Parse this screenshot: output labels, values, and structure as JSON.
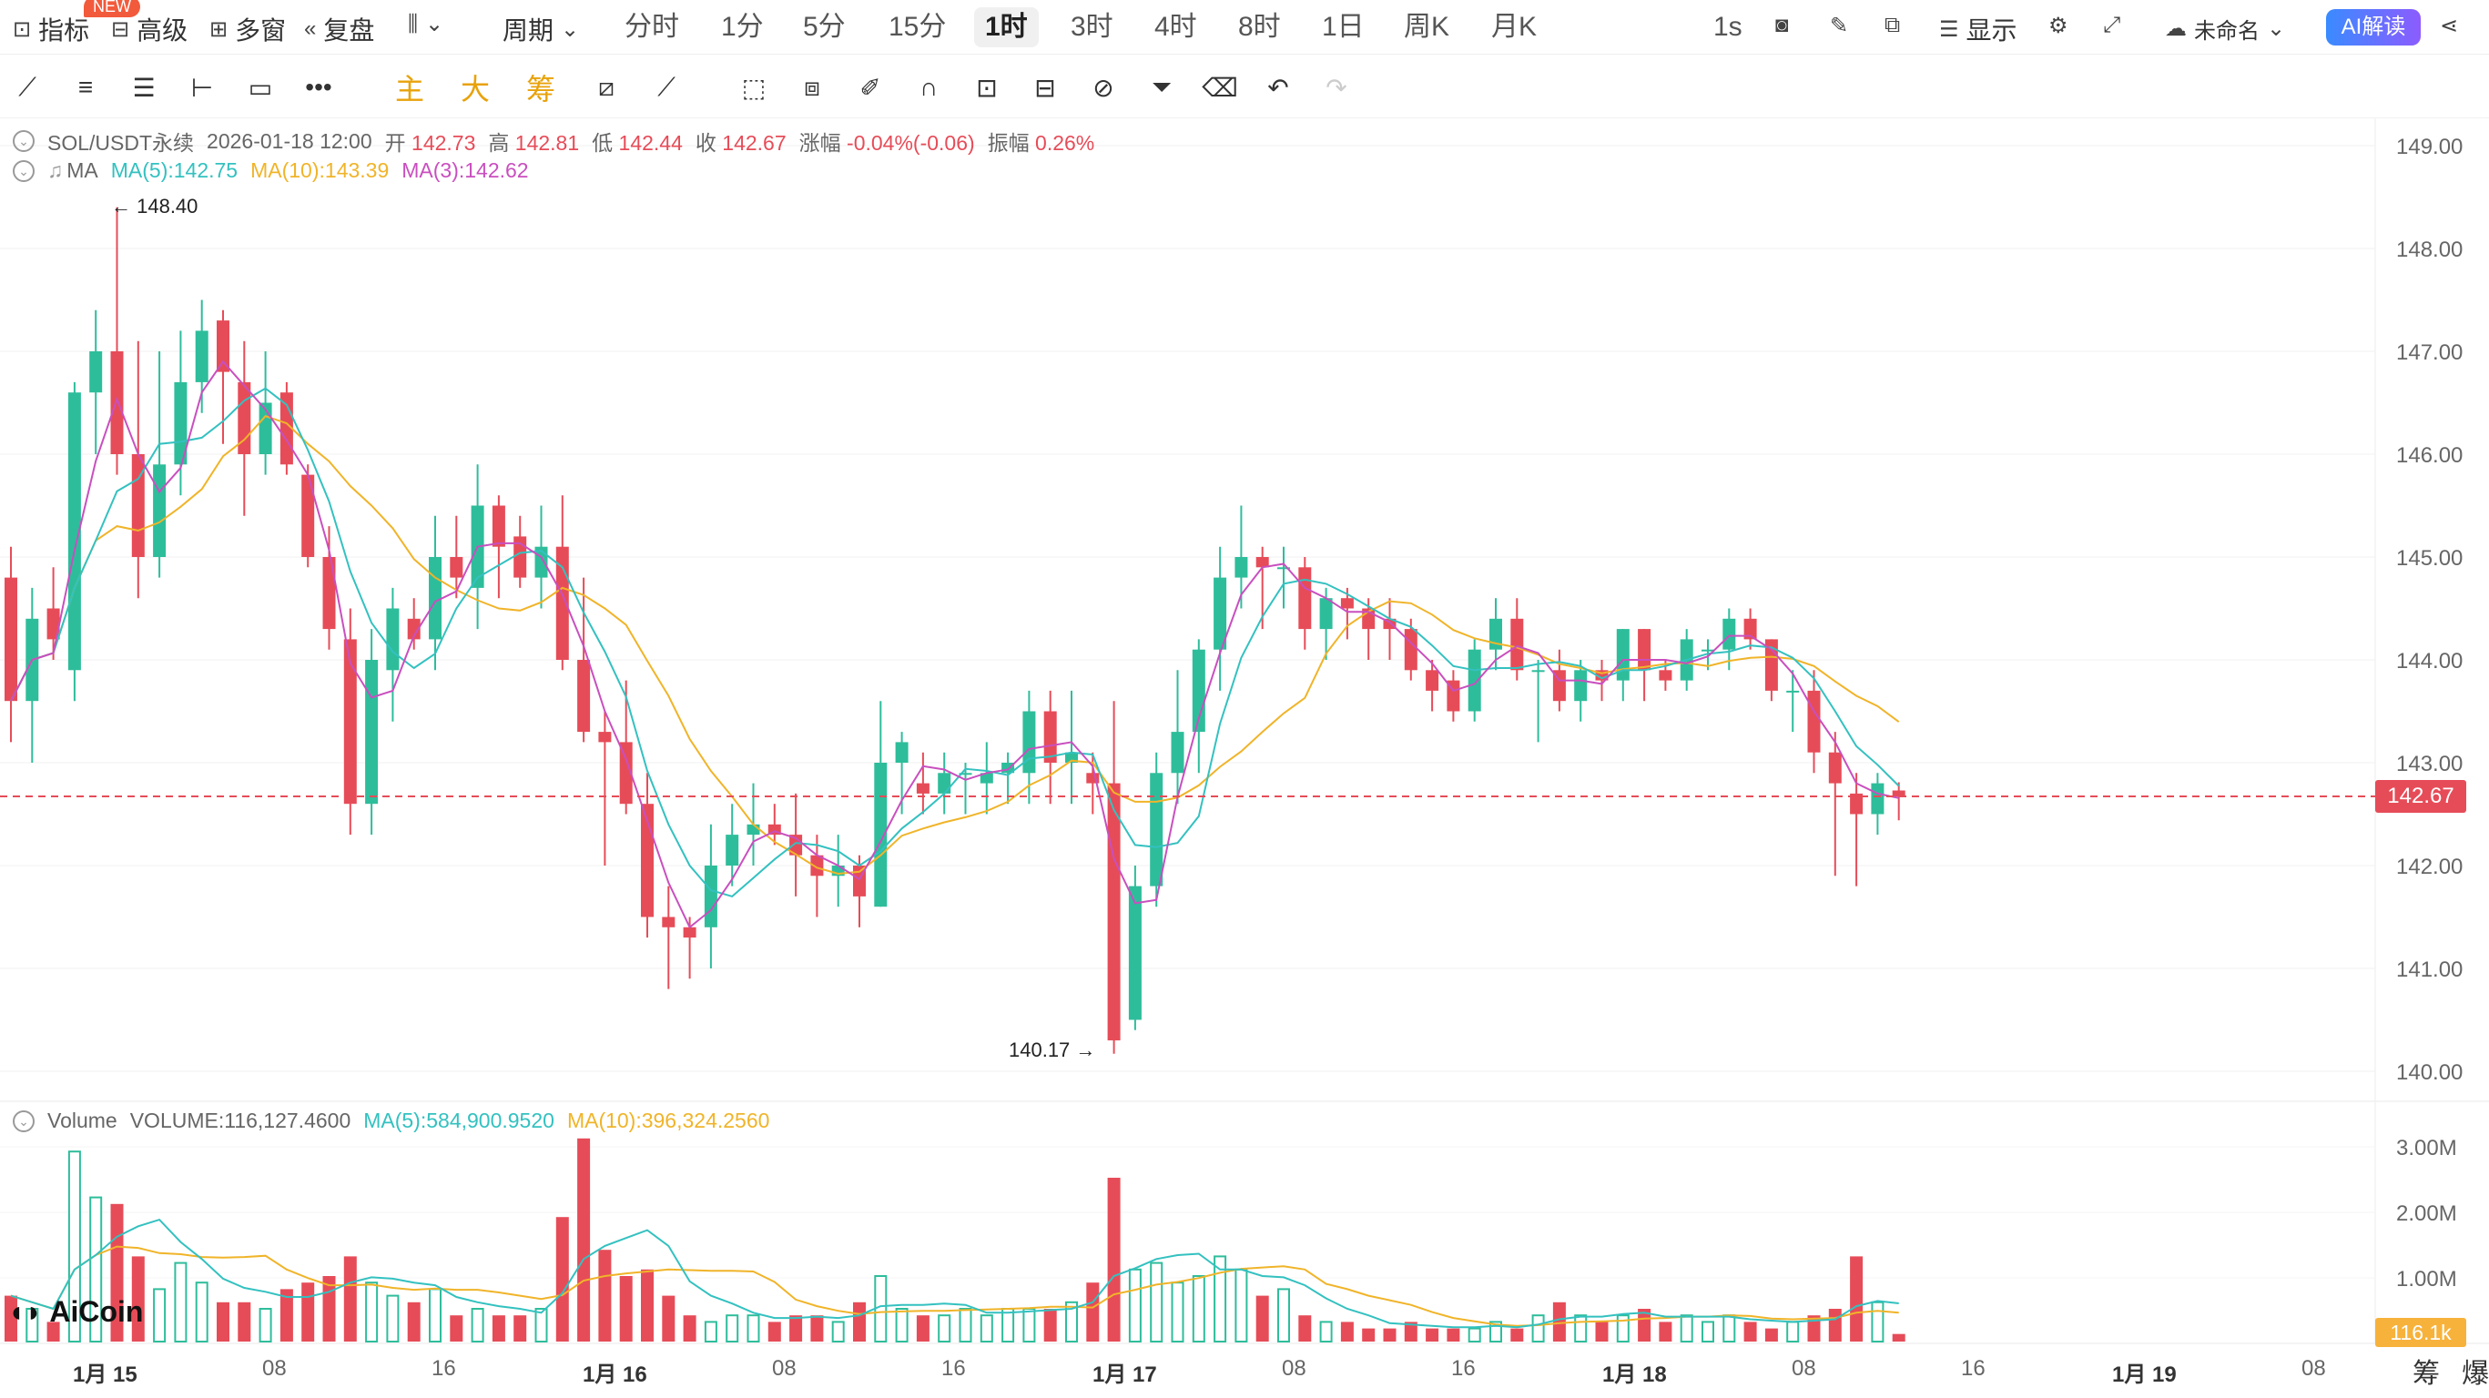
{
  "topbar": {
    "indicator_label": "指标",
    "new_badge": "NEW",
    "advanced_label": "高级",
    "multi_window_label": "多窗",
    "replay_label": "复盘",
    "period_label": "周期",
    "periods": [
      "分时",
      "1分",
      "5分",
      "15分",
      "1时",
      "3时",
      "4时",
      "8时",
      "1日",
      "周K",
      "月K"
    ],
    "active_period": "1时",
    "refresh_label": "1s",
    "display_label": "显示",
    "layout_name": "未命名",
    "ai_label": "AI解读"
  },
  "toolbar": {
    "main_label": "主",
    "big_label": "大",
    "chips_label": "筹"
  },
  "ohlc_legend": {
    "symbol": "SOL/USDT永续",
    "datetime": "2026-01-18 12:00",
    "open_label": "开",
    "open": "142.73",
    "high_label": "高",
    "high": "142.81",
    "low_label": "低",
    "low": "142.44",
    "close_label": "收",
    "close": "142.67",
    "change_label": "涨幅",
    "change": "-0.04%(-0.06)",
    "amplitude_label": "振幅",
    "amplitude": "0.26%"
  },
  "ma_legend": {
    "name": "MA",
    "ma5": "MA(5):142.75",
    "ma10": "MA(10):143.39",
    "ma3": "MA(3):142.62"
  },
  "volume_legend": {
    "name": "Volume",
    "volume": "VOLUME:116,127.4600",
    "ma5": "MA(5):584,900.9520",
    "ma10": "MA(10):396,324.2560"
  },
  "annotations": {
    "high_mark": "← 148.40",
    "low_mark": "140.17 →"
  },
  "price_axis": [
    "149.00",
    "148.00",
    "147.00",
    "146.00",
    "145.00",
    "144.00",
    "143.00",
    "142.00",
    "141.00",
    "140.00"
  ],
  "current_price": "142.67",
  "volume_axis": [
    "3.00M",
    "2.00M",
    "1.00M"
  ],
  "current_volume": "116.1k",
  "time_axis": [
    "1月 15",
    "08",
    "16",
    "1月 16",
    "08",
    "16",
    "1月 17",
    "08",
    "16",
    "1月 18",
    "08",
    "16",
    "1月 19",
    "08"
  ],
  "footer": {
    "chips": "筹",
    "liquidation": "爆"
  },
  "watermark": "AiCoin",
  "colors": {
    "up": "#2ebd9b",
    "down": "#e64c58",
    "ma5": "#33c1c0",
    "ma10": "#f0b429",
    "ma3": "#c94fbf"
  },
  "chart_data": {
    "type": "candlestick",
    "interval": "1h",
    "price_range": [
      140.0,
      149.0
    ],
    "volume_range_millions": [
      0,
      3.0
    ],
    "candles": [
      {
        "o": 144.8,
        "h": 145.1,
        "l": 143.2,
        "c": 143.6
      },
      {
        "o": 143.6,
        "h": 144.7,
        "l": 143.0,
        "c": 144.4
      },
      {
        "o": 144.5,
        "h": 144.9,
        "l": 144.0,
        "c": 144.2
      },
      {
        "o": 143.9,
        "h": 146.7,
        "l": 143.6,
        "c": 146.6
      },
      {
        "o": 146.6,
        "h": 147.4,
        "l": 146.0,
        "c": 147.0
      },
      {
        "o": 147.0,
        "h": 148.4,
        "l": 145.8,
        "c": 146.0
      },
      {
        "o": 146.0,
        "h": 147.1,
        "l": 144.6,
        "c": 145.0
      },
      {
        "o": 145.0,
        "h": 147.0,
        "l": 144.8,
        "c": 145.9
      },
      {
        "o": 145.9,
        "h": 147.2,
        "l": 145.6,
        "c": 146.7
      },
      {
        "o": 146.7,
        "h": 147.5,
        "l": 146.4,
        "c": 147.2
      },
      {
        "o": 147.3,
        "h": 147.4,
        "l": 146.1,
        "c": 146.8
      },
      {
        "o": 146.7,
        "h": 147.1,
        "l": 145.4,
        "c": 146.0
      },
      {
        "o": 146.0,
        "h": 147.0,
        "l": 145.8,
        "c": 146.5
      },
      {
        "o": 146.6,
        "h": 146.7,
        "l": 145.8,
        "c": 145.9
      },
      {
        "o": 145.8,
        "h": 145.9,
        "l": 144.9,
        "c": 145.0
      },
      {
        "o": 145.0,
        "h": 145.3,
        "l": 144.1,
        "c": 144.3
      },
      {
        "o": 144.2,
        "h": 144.5,
        "l": 142.3,
        "c": 142.6
      },
      {
        "o": 142.6,
        "h": 144.3,
        "l": 142.3,
        "c": 144.0
      },
      {
        "o": 143.9,
        "h": 144.7,
        "l": 143.4,
        "c": 144.5
      },
      {
        "o": 144.4,
        "h": 144.6,
        "l": 144.1,
        "c": 144.2
      },
      {
        "o": 144.2,
        "h": 145.4,
        "l": 143.9,
        "c": 145.0
      },
      {
        "o": 145.0,
        "h": 145.4,
        "l": 144.6,
        "c": 144.8
      },
      {
        "o": 144.7,
        "h": 145.9,
        "l": 144.3,
        "c": 145.5
      },
      {
        "o": 145.5,
        "h": 145.6,
        "l": 144.6,
        "c": 145.1
      },
      {
        "o": 145.2,
        "h": 145.4,
        "l": 144.7,
        "c": 144.8
      },
      {
        "o": 144.8,
        "h": 145.5,
        "l": 144.5,
        "c": 145.1
      },
      {
        "o": 145.1,
        "h": 145.6,
        "l": 143.9,
        "c": 144.0
      },
      {
        "o": 144.0,
        "h": 144.8,
        "l": 143.2,
        "c": 143.3
      },
      {
        "o": 143.3,
        "h": 143.5,
        "l": 142.0,
        "c": 143.2
      },
      {
        "o": 143.2,
        "h": 143.8,
        "l": 142.5,
        "c": 142.6
      },
      {
        "o": 142.6,
        "h": 142.9,
        "l": 141.3,
        "c": 141.5
      },
      {
        "o": 141.5,
        "h": 141.8,
        "l": 140.8,
        "c": 141.4
      },
      {
        "o": 141.4,
        "h": 141.5,
        "l": 140.9,
        "c": 141.3
      },
      {
        "o": 141.4,
        "h": 142.4,
        "l": 141.0,
        "c": 142.0
      },
      {
        "o": 142.0,
        "h": 142.6,
        "l": 141.8,
        "c": 142.3
      },
      {
        "o": 142.3,
        "h": 142.8,
        "l": 142.0,
        "c": 142.4
      },
      {
        "o": 142.4,
        "h": 142.6,
        "l": 142.2,
        "c": 142.3
      },
      {
        "o": 142.3,
        "h": 142.7,
        "l": 141.7,
        "c": 142.1
      },
      {
        "o": 142.1,
        "h": 142.3,
        "l": 141.5,
        "c": 141.9
      },
      {
        "o": 141.9,
        "h": 142.3,
        "l": 141.6,
        "c": 142.0
      },
      {
        "o": 142.0,
        "h": 142.1,
        "l": 141.4,
        "c": 141.7
      },
      {
        "o": 141.6,
        "h": 143.6,
        "l": 141.6,
        "c": 143.0
      },
      {
        "o": 143.0,
        "h": 143.3,
        "l": 142.5,
        "c": 143.2
      },
      {
        "o": 142.8,
        "h": 143.1,
        "l": 142.5,
        "c": 142.7
      },
      {
        "o": 142.7,
        "h": 143.1,
        "l": 142.5,
        "c": 142.9
      },
      {
        "o": 142.9,
        "h": 143.0,
        "l": 142.5,
        "c": 142.9
      },
      {
        "o": 142.8,
        "h": 143.2,
        "l": 142.5,
        "c": 142.9
      },
      {
        "o": 142.9,
        "h": 143.1,
        "l": 142.6,
        "c": 143.0
      },
      {
        "o": 142.9,
        "h": 143.7,
        "l": 142.6,
        "c": 143.5
      },
      {
        "o": 143.5,
        "h": 143.7,
        "l": 142.6,
        "c": 143.0
      },
      {
        "o": 143.0,
        "h": 143.7,
        "l": 142.6,
        "c": 143.1
      },
      {
        "o": 142.9,
        "h": 143.1,
        "l": 142.5,
        "c": 142.8
      },
      {
        "o": 142.8,
        "h": 143.6,
        "l": 140.17,
        "c": 140.3
      },
      {
        "o": 140.5,
        "h": 142.0,
        "l": 140.4,
        "c": 141.8
      },
      {
        "o": 141.8,
        "h": 143.1,
        "l": 141.6,
        "c": 142.9
      },
      {
        "o": 142.9,
        "h": 143.9,
        "l": 142.6,
        "c": 143.3
      },
      {
        "o": 143.3,
        "h": 144.2,
        "l": 142.9,
        "c": 144.1
      },
      {
        "o": 144.1,
        "h": 145.1,
        "l": 143.7,
        "c": 144.8
      },
      {
        "o": 144.8,
        "h": 145.5,
        "l": 144.5,
        "c": 145.0
      },
      {
        "o": 145.0,
        "h": 145.1,
        "l": 144.3,
        "c": 144.9
      },
      {
        "o": 144.9,
        "h": 145.1,
        "l": 144.5,
        "c": 144.9
      },
      {
        "o": 144.9,
        "h": 145.0,
        "l": 144.1,
        "c": 144.3
      },
      {
        "o": 144.3,
        "h": 144.7,
        "l": 144.0,
        "c": 144.6
      },
      {
        "o": 144.6,
        "h": 144.7,
        "l": 144.2,
        "c": 144.5
      },
      {
        "o": 144.5,
        "h": 144.6,
        "l": 144.0,
        "c": 144.3
      },
      {
        "o": 144.4,
        "h": 144.6,
        "l": 144.0,
        "c": 144.3
      },
      {
        "o": 144.3,
        "h": 144.4,
        "l": 143.8,
        "c": 143.9
      },
      {
        "o": 143.9,
        "h": 144.0,
        "l": 143.5,
        "c": 143.7
      },
      {
        "o": 143.8,
        "h": 143.9,
        "l": 143.4,
        "c": 143.5
      },
      {
        "o": 143.5,
        "h": 144.2,
        "l": 143.4,
        "c": 144.1
      },
      {
        "o": 144.1,
        "h": 144.6,
        "l": 143.9,
        "c": 144.4
      },
      {
        "o": 144.4,
        "h": 144.6,
        "l": 143.8,
        "c": 143.9
      },
      {
        "o": 143.9,
        "h": 144.0,
        "l": 143.2,
        "c": 143.9
      },
      {
        "o": 143.9,
        "h": 144.1,
        "l": 143.5,
        "c": 143.6
      },
      {
        "o": 143.6,
        "h": 144.0,
        "l": 143.4,
        "c": 143.9
      },
      {
        "o": 143.9,
        "h": 144.0,
        "l": 143.6,
        "c": 143.8
      },
      {
        "o": 143.8,
        "h": 144.3,
        "l": 143.6,
        "c": 144.3
      },
      {
        "o": 144.3,
        "h": 144.3,
        "l": 143.6,
        "c": 143.9
      },
      {
        "o": 143.9,
        "h": 144.0,
        "l": 143.7,
        "c": 143.8
      },
      {
        "o": 143.8,
        "h": 144.3,
        "l": 143.7,
        "c": 144.2
      },
      {
        "o": 144.1,
        "h": 144.2,
        "l": 143.9,
        "c": 144.1
      },
      {
        "o": 144.1,
        "h": 144.5,
        "l": 143.9,
        "c": 144.4
      },
      {
        "o": 144.4,
        "h": 144.5,
        "l": 144.1,
        "c": 144.2
      },
      {
        "o": 144.2,
        "h": 144.2,
        "l": 143.6,
        "c": 143.7
      },
      {
        "o": 143.7,
        "h": 143.9,
        "l": 143.3,
        "c": 143.7
      },
      {
        "o": 143.7,
        "h": 143.9,
        "l": 142.9,
        "c": 143.1
      },
      {
        "o": 143.1,
        "h": 143.3,
        "l": 141.9,
        "c": 142.8
      },
      {
        "o": 142.7,
        "h": 142.9,
        "l": 141.8,
        "c": 142.5
      },
      {
        "o": 142.5,
        "h": 142.9,
        "l": 142.3,
        "c": 142.8
      },
      {
        "o": 142.73,
        "h": 142.81,
        "l": 142.44,
        "c": 142.67
      }
    ],
    "volume_millions": [
      0.7,
      0.5,
      0.3,
      2.9,
      2.2,
      2.1,
      1.3,
      0.8,
      1.2,
      0.9,
      0.6,
      0.6,
      0.5,
      0.8,
      0.9,
      1.0,
      1.3,
      0.9,
      0.7,
      0.6,
      0.8,
      0.4,
      0.5,
      0.4,
      0.4,
      0.5,
      1.9,
      3.1,
      1.4,
      1.0,
      1.1,
      0.7,
      0.4,
      0.3,
      0.4,
      0.4,
      0.3,
      0.4,
      0.4,
      0.3,
      0.6,
      1.0,
      0.5,
      0.4,
      0.4,
      0.5,
      0.4,
      0.5,
      0.5,
      0.5,
      0.6,
      0.9,
      2.5,
      1.1,
      1.2,
      0.9,
      1.0,
      1.3,
      1.1,
      0.7,
      0.8,
      0.4,
      0.3,
      0.3,
      0.2,
      0.2,
      0.3,
      0.2,
      0.2,
      0.2,
      0.3,
      0.2,
      0.4,
      0.6,
      0.4,
      0.3,
      0.4,
      0.5,
      0.3,
      0.4,
      0.3,
      0.4,
      0.3,
      0.2,
      0.3,
      0.4,
      0.5,
      1.3,
      0.6,
      0.116
    ],
    "volume_ma5_millions": 0.5849,
    "volume_ma10_millions": 0.3963
  }
}
